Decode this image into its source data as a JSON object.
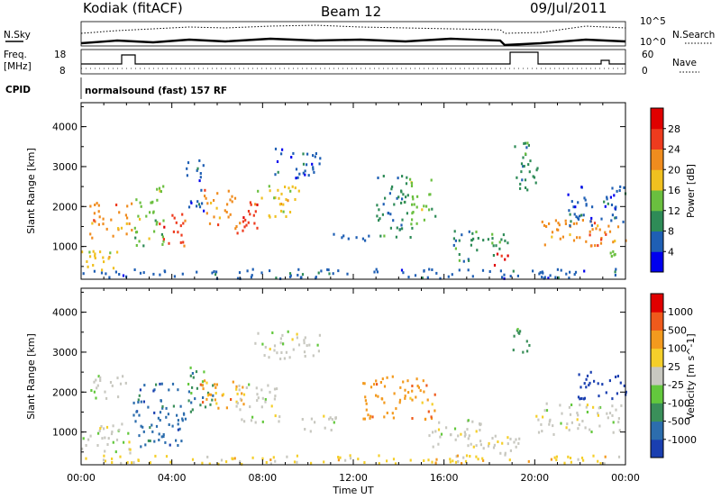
{
  "header": {
    "station": "Kodiak (fitACF)",
    "beam": "Beam 12",
    "date": "09/Jul/2011"
  },
  "aux": {
    "noise_left": "N.Sky",
    "noise_right": "N.Search",
    "noise_ticks": [
      "10^5",
      "10^0"
    ],
    "freq_label_1": "Freq.",
    "freq_label_2": "[MHz]",
    "freq_ticks": [
      "18",
      "8"
    ],
    "nave_label": "Nave",
    "nave_ticks": [
      "60",
      "0"
    ],
    "cpid_label": "CPID",
    "cpid_text": "normalsound (fast) 157 RF"
  },
  "time_axis": {
    "label": "Time UT",
    "ticks": [
      "00:00",
      "04:00",
      "08:00",
      "12:00",
      "16:00",
      "20:00",
      "00:00"
    ]
  },
  "colors": {
    "power": [
      "#0000ee",
      "#1f5fb4",
      "#2e8b57",
      "#6abf3f",
      "#f0c020",
      "#f08c1e",
      "#ee3b1e",
      "#e00000"
    ],
    "velocity": [
      "#1a3fb0",
      "#2c6dad",
      "#3a8f5a",
      "#63c83d",
      "#c8c8c0",
      "#f5cf2a",
      "#f39a1e",
      "#ef5a1c",
      "#e00000"
    ]
  },
  "chart_data": [
    {
      "type": "heatmap",
      "title": "Power",
      "xlabel": "Time UT",
      "ylabel": "Slant Range [km]",
      "colorbar_label": "Power [dB]",
      "x_range": [
        "00:00",
        "24:00"
      ],
      "ylim": [
        180,
        4600
      ],
      "yticks": [
        "1000",
        "2000",
        "3000",
        "4000"
      ],
      "colorbar_ticks": [
        "28",
        "24",
        "20",
        "16",
        "12",
        "8",
        "4"
      ],
      "colorbar_range": [
        0,
        32
      ],
      "regions": [
        {
          "t0": 0.0,
          "t1": 1.7,
          "r0": 300,
          "r1": 900,
          "c": 4
        },
        {
          "t0": 0.3,
          "t1": 2.2,
          "r0": 1200,
          "r1": 2100,
          "c": 5
        },
        {
          "t0": 2.3,
          "t1": 3.6,
          "r0": 1000,
          "r1": 2500,
          "c": 3
        },
        {
          "t0": 3.4,
          "t1": 4.6,
          "r0": 1000,
          "r1": 1800,
          "c": 6
        },
        {
          "t0": 4.6,
          "t1": 5.4,
          "r0": 1800,
          "r1": 3200,
          "c": 1
        },
        {
          "t0": 5.4,
          "t1": 6.8,
          "r0": 1500,
          "r1": 2400,
          "c": 5
        },
        {
          "t0": 6.6,
          "t1": 7.9,
          "r0": 1300,
          "r1": 2200,
          "c": 6
        },
        {
          "t0": 7.7,
          "t1": 9.6,
          "r0": 1700,
          "r1": 2500,
          "c": 4
        },
        {
          "t0": 8.5,
          "t1": 10.5,
          "r0": 2700,
          "r1": 3500,
          "c": 1
        },
        {
          "t0": 10.6,
          "t1": 12.7,
          "r0": 1100,
          "r1": 1300,
          "c": 1
        },
        {
          "t0": 13.0,
          "t1": 14.6,
          "r0": 1200,
          "r1": 2800,
          "c": 2
        },
        {
          "t0": 14.5,
          "t1": 15.6,
          "r0": 1500,
          "r1": 2700,
          "c": 3
        },
        {
          "t0": 16.4,
          "t1": 18.8,
          "r0": 600,
          "r1": 1400,
          "c": 2
        },
        {
          "t0": 17.8,
          "t1": 18.8,
          "r0": 500,
          "r1": 800,
          "c": 7
        },
        {
          "t0": 18.9,
          "t1": 20.2,
          "r0": 2400,
          "r1": 3600,
          "c": 2
        },
        {
          "t0": 20.2,
          "t1": 24.0,
          "r0": 1000,
          "r1": 1700,
          "c": 5
        },
        {
          "t0": 21.3,
          "t1": 24.0,
          "r0": 1500,
          "r1": 2500,
          "c": 1
        },
        {
          "t0": 23.3,
          "t1": 24.0,
          "r0": 500,
          "r1": 900,
          "c": 3
        },
        {
          "t0": 0.0,
          "t1": 24.0,
          "r0": 180,
          "r1": 420,
          "c": 1
        }
      ]
    },
    {
      "type": "heatmap",
      "title": "Velocity",
      "xlabel": "Time UT",
      "ylabel": "Slant Range [km]",
      "colorbar_label": "Velocity [m s^-1]",
      "x_range": [
        "00:00",
        "24:00"
      ],
      "ylim": [
        180,
        4600
      ],
      "yticks": [
        "1000",
        "2000",
        "3000",
        "4000"
      ],
      "colorbar_ticks": [
        "1000",
        "500",
        "100",
        "25",
        "-25",
        "-100",
        "-500",
        "-1000"
      ],
      "regions": [
        {
          "t0": 0.0,
          "t1": 2.2,
          "r0": 400,
          "r1": 1200,
          "c": 4
        },
        {
          "t0": 0.3,
          "t1": 2.0,
          "r0": 1800,
          "r1": 2400,
          "c": 4
        },
        {
          "t0": 2.2,
          "t1": 4.6,
          "r0": 600,
          "r1": 2200,
          "c": 1
        },
        {
          "t0": 4.6,
          "t1": 5.8,
          "r0": 1400,
          "r1": 2600,
          "c": 2
        },
        {
          "t0": 5.2,
          "t1": 7.2,
          "r0": 1500,
          "r1": 2300,
          "c": 6
        },
        {
          "t0": 6.8,
          "t1": 8.8,
          "r0": 1200,
          "r1": 2200,
          "c": 4
        },
        {
          "t0": 7.6,
          "t1": 10.6,
          "r0": 2800,
          "r1": 3500,
          "c": 4
        },
        {
          "t0": 9.3,
          "t1": 11.3,
          "r0": 1000,
          "r1": 1400,
          "c": 4
        },
        {
          "t0": 12.4,
          "t1": 15.6,
          "r0": 1300,
          "r1": 2400,
          "c": 6
        },
        {
          "t0": 15.2,
          "t1": 17.6,
          "r0": 600,
          "r1": 1400,
          "c": 4
        },
        {
          "t0": 17.3,
          "t1": 19.7,
          "r0": 400,
          "r1": 900,
          "c": 4
        },
        {
          "t0": 18.9,
          "t1": 19.8,
          "r0": 2900,
          "r1": 3600,
          "c": 2
        },
        {
          "t0": 20.0,
          "t1": 23.8,
          "r0": 900,
          "r1": 1700,
          "c": 4
        },
        {
          "t0": 21.8,
          "t1": 24.0,
          "r0": 1800,
          "r1": 2500,
          "c": 0
        },
        {
          "t0": 0.0,
          "t1": 24.0,
          "r0": 180,
          "r1": 400,
          "c": 5
        }
      ]
    }
  ]
}
